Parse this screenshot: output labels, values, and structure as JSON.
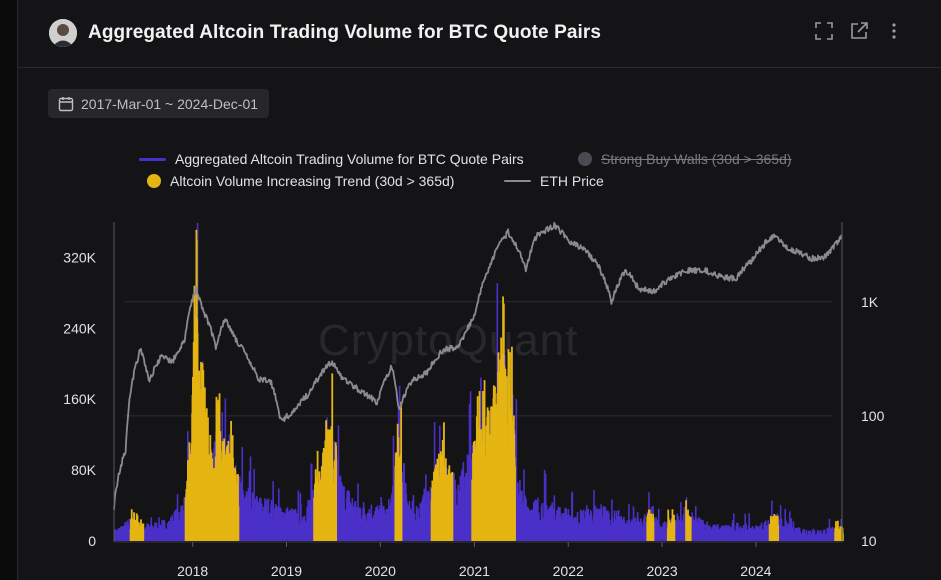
{
  "header": {
    "title": "Aggregated Altcoin Trading Volume for BTC Quote Pairs",
    "icons": [
      "fullscreen-icon",
      "external-link-icon",
      "more-vertical-icon"
    ]
  },
  "date_range": {
    "label": "2017-Mar-01 ~ 2024-Dec-01"
  },
  "watermark": "CryptoQuant",
  "legend": [
    {
      "label": "Aggregated Altcoin Trading Volume for BTC Quote Pairs",
      "color": "#4a30c8",
      "kind": "line",
      "enabled": true
    },
    {
      "label": "Strong Buy Walls (30d > 365d)",
      "color": "#4a4a52",
      "kind": "dot",
      "enabled": false
    },
    {
      "label": "Altcoin Volume Increasing Trend (30d > 365d)",
      "color": "#e5b512",
      "kind": "dot",
      "enabled": true
    },
    {
      "label": "ETH Price",
      "color": "#8a8a90",
      "kind": "line",
      "enabled": true
    }
  ],
  "chart_data": {
    "type": "bar",
    "x_ticks": [
      "2018",
      "2019",
      "2020",
      "2021",
      "2022",
      "2023",
      "2024"
    ],
    "x_range": [
      "2017-03-01",
      "2024-12-01"
    ],
    "y_left": {
      "ticks": [
        "0",
        "80K",
        "160K",
        "240K",
        "320K"
      ],
      "range": [
        0,
        360000
      ]
    },
    "y_right": {
      "scale": "log",
      "ticks": [
        "10",
        "100",
        "1K"
      ],
      "range": [
        8,
        5000
      ]
    },
    "grid_values_right": [
      100,
      1000
    ],
    "volume_envelope": {
      "x": [
        "2017-03-01",
        "2017-05-01",
        "2017-06-15",
        "2017-08-01",
        "2017-10-01",
        "2017-12-01",
        "2017-12-25",
        "2018-01-07",
        "2018-01-20",
        "2018-03-01",
        "2018-05-01",
        "2018-06-15",
        "2018-07-15",
        "2018-09-01",
        "2018-11-01",
        "2019-01-01",
        "2019-03-01",
        "2019-05-01",
        "2019-06-20",
        "2019-08-01",
        "2019-10-01",
        "2019-12-01",
        "2020-02-01",
        "2020-03-12",
        "2020-05-01",
        "2020-07-01",
        "2020-08-20",
        "2020-10-01",
        "2020-11-20",
        "2021-01-10",
        "2021-02-20",
        "2021-04-15",
        "2021-05-20",
        "2021-06-30",
        "2021-08-01",
        "2021-10-01",
        "2021-12-01",
        "2022-02-01",
        "2022-05-10",
        "2022-07-01",
        "2022-09-01",
        "2022-11-10",
        "2023-01-01",
        "2023-03-15",
        "2023-06-01",
        "2023-08-01",
        "2023-11-01",
        "2024-01-01",
        "2024-03-10",
        "2024-06-01",
        "2024-09-01",
        "2024-11-01",
        "2024-12-01"
      ],
      "values": [
        15000,
        30000,
        22000,
        25000,
        30000,
        60000,
        140000,
        380000,
        220000,
        120000,
        150000,
        90000,
        80000,
        60000,
        55000,
        45000,
        40000,
        90000,
        160000,
        80000,
        55000,
        50000,
        45000,
        150000,
        40000,
        70000,
        120000,
        90000,
        110000,
        140000,
        170000,
        240000,
        190000,
        70000,
        55000,
        60000,
        45000,
        40000,
        50000,
        35000,
        30000,
        40000,
        25000,
        40000,
        30000,
        20000,
        25000,
        20000,
        35000,
        20000,
        15000,
        20000,
        18000
      ]
    },
    "eth_price": {
      "x": [
        "2017-03-01",
        "2017-04-15",
        "2017-06-12",
        "2017-07-15",
        "2017-09-01",
        "2017-10-15",
        "2017-12-01",
        "2018-01-13",
        "2018-02-10",
        "2018-04-01",
        "2018-05-05",
        "2018-06-20",
        "2018-08-15",
        "2018-09-15",
        "2018-11-01",
        "2018-12-10",
        "2019-02-01",
        "2019-04-01",
        "2019-06-26",
        "2019-08-01",
        "2019-10-01",
        "2019-12-20",
        "2020-02-15",
        "2020-03-13",
        "2020-05-01",
        "2020-07-01",
        "2020-09-01",
        "2020-11-01",
        "2021-01-01",
        "2021-02-20",
        "2021-05-12",
        "2021-07-20",
        "2021-09-01",
        "2021-11-10",
        "2022-01-01",
        "2022-03-01",
        "2022-05-01",
        "2022-06-18",
        "2022-08-13",
        "2022-10-01",
        "2022-12-01",
        "2023-02-01",
        "2023-04-15",
        "2023-06-15",
        "2023-08-15",
        "2023-10-15",
        "2023-12-15",
        "2024-03-12",
        "2024-05-01",
        "2024-08-05",
        "2024-10-01",
        "2024-12-01"
      ],
      "values": [
        16,
        50,
        380,
        200,
        330,
        300,
        450,
        1300,
        850,
        400,
        700,
        460,
        280,
        210,
        200,
        90,
        110,
        160,
        300,
        220,
        175,
        130,
        270,
        110,
        200,
        240,
        380,
        400,
        730,
        1800,
        4100,
        1900,
        3800,
        4700,
        3400,
        2900,
        2000,
        1000,
        1900,
        1300,
        1250,
        1600,
        1900,
        1900,
        1650,
        1600,
        2300,
        3900,
        3000,
        2400,
        2500,
        3700
      ]
    }
  }
}
